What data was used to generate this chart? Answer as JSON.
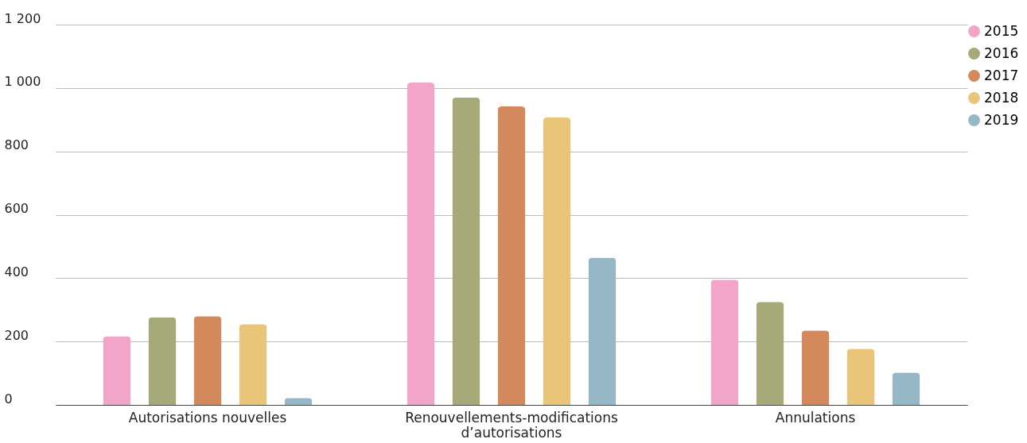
{
  "chart_data": {
    "type": "bar",
    "categories": [
      "Autorisations nouvelles",
      "Renouvellements-modifications\nd’autorisations",
      "Annulations"
    ],
    "series": [
      {
        "name": "2015",
        "color": "#f2a5c9",
        "values": [
          217,
          1017,
          395
        ]
      },
      {
        "name": "2016",
        "color": "#a6aa78",
        "values": [
          277,
          970,
          325
        ]
      },
      {
        "name": "2017",
        "color": "#d4895c",
        "values": [
          280,
          942,
          235
        ]
      },
      {
        "name": "2018",
        "color": "#e8c578",
        "values": [
          255,
          907,
          177
        ]
      },
      {
        "name": "2019",
        "color": "#96b8c6",
        "values": [
          22,
          465,
          102
        ]
      }
    ],
    "ylim": [
      0,
      1200
    ],
    "yticks": [
      0,
      200,
      400,
      600,
      800,
      {
        "value": 1000,
        "label": "1 000"
      },
      {
        "value": 1200,
        "label": "1 200"
      }
    ],
    "grid": "y",
    "legend": "top right"
  }
}
